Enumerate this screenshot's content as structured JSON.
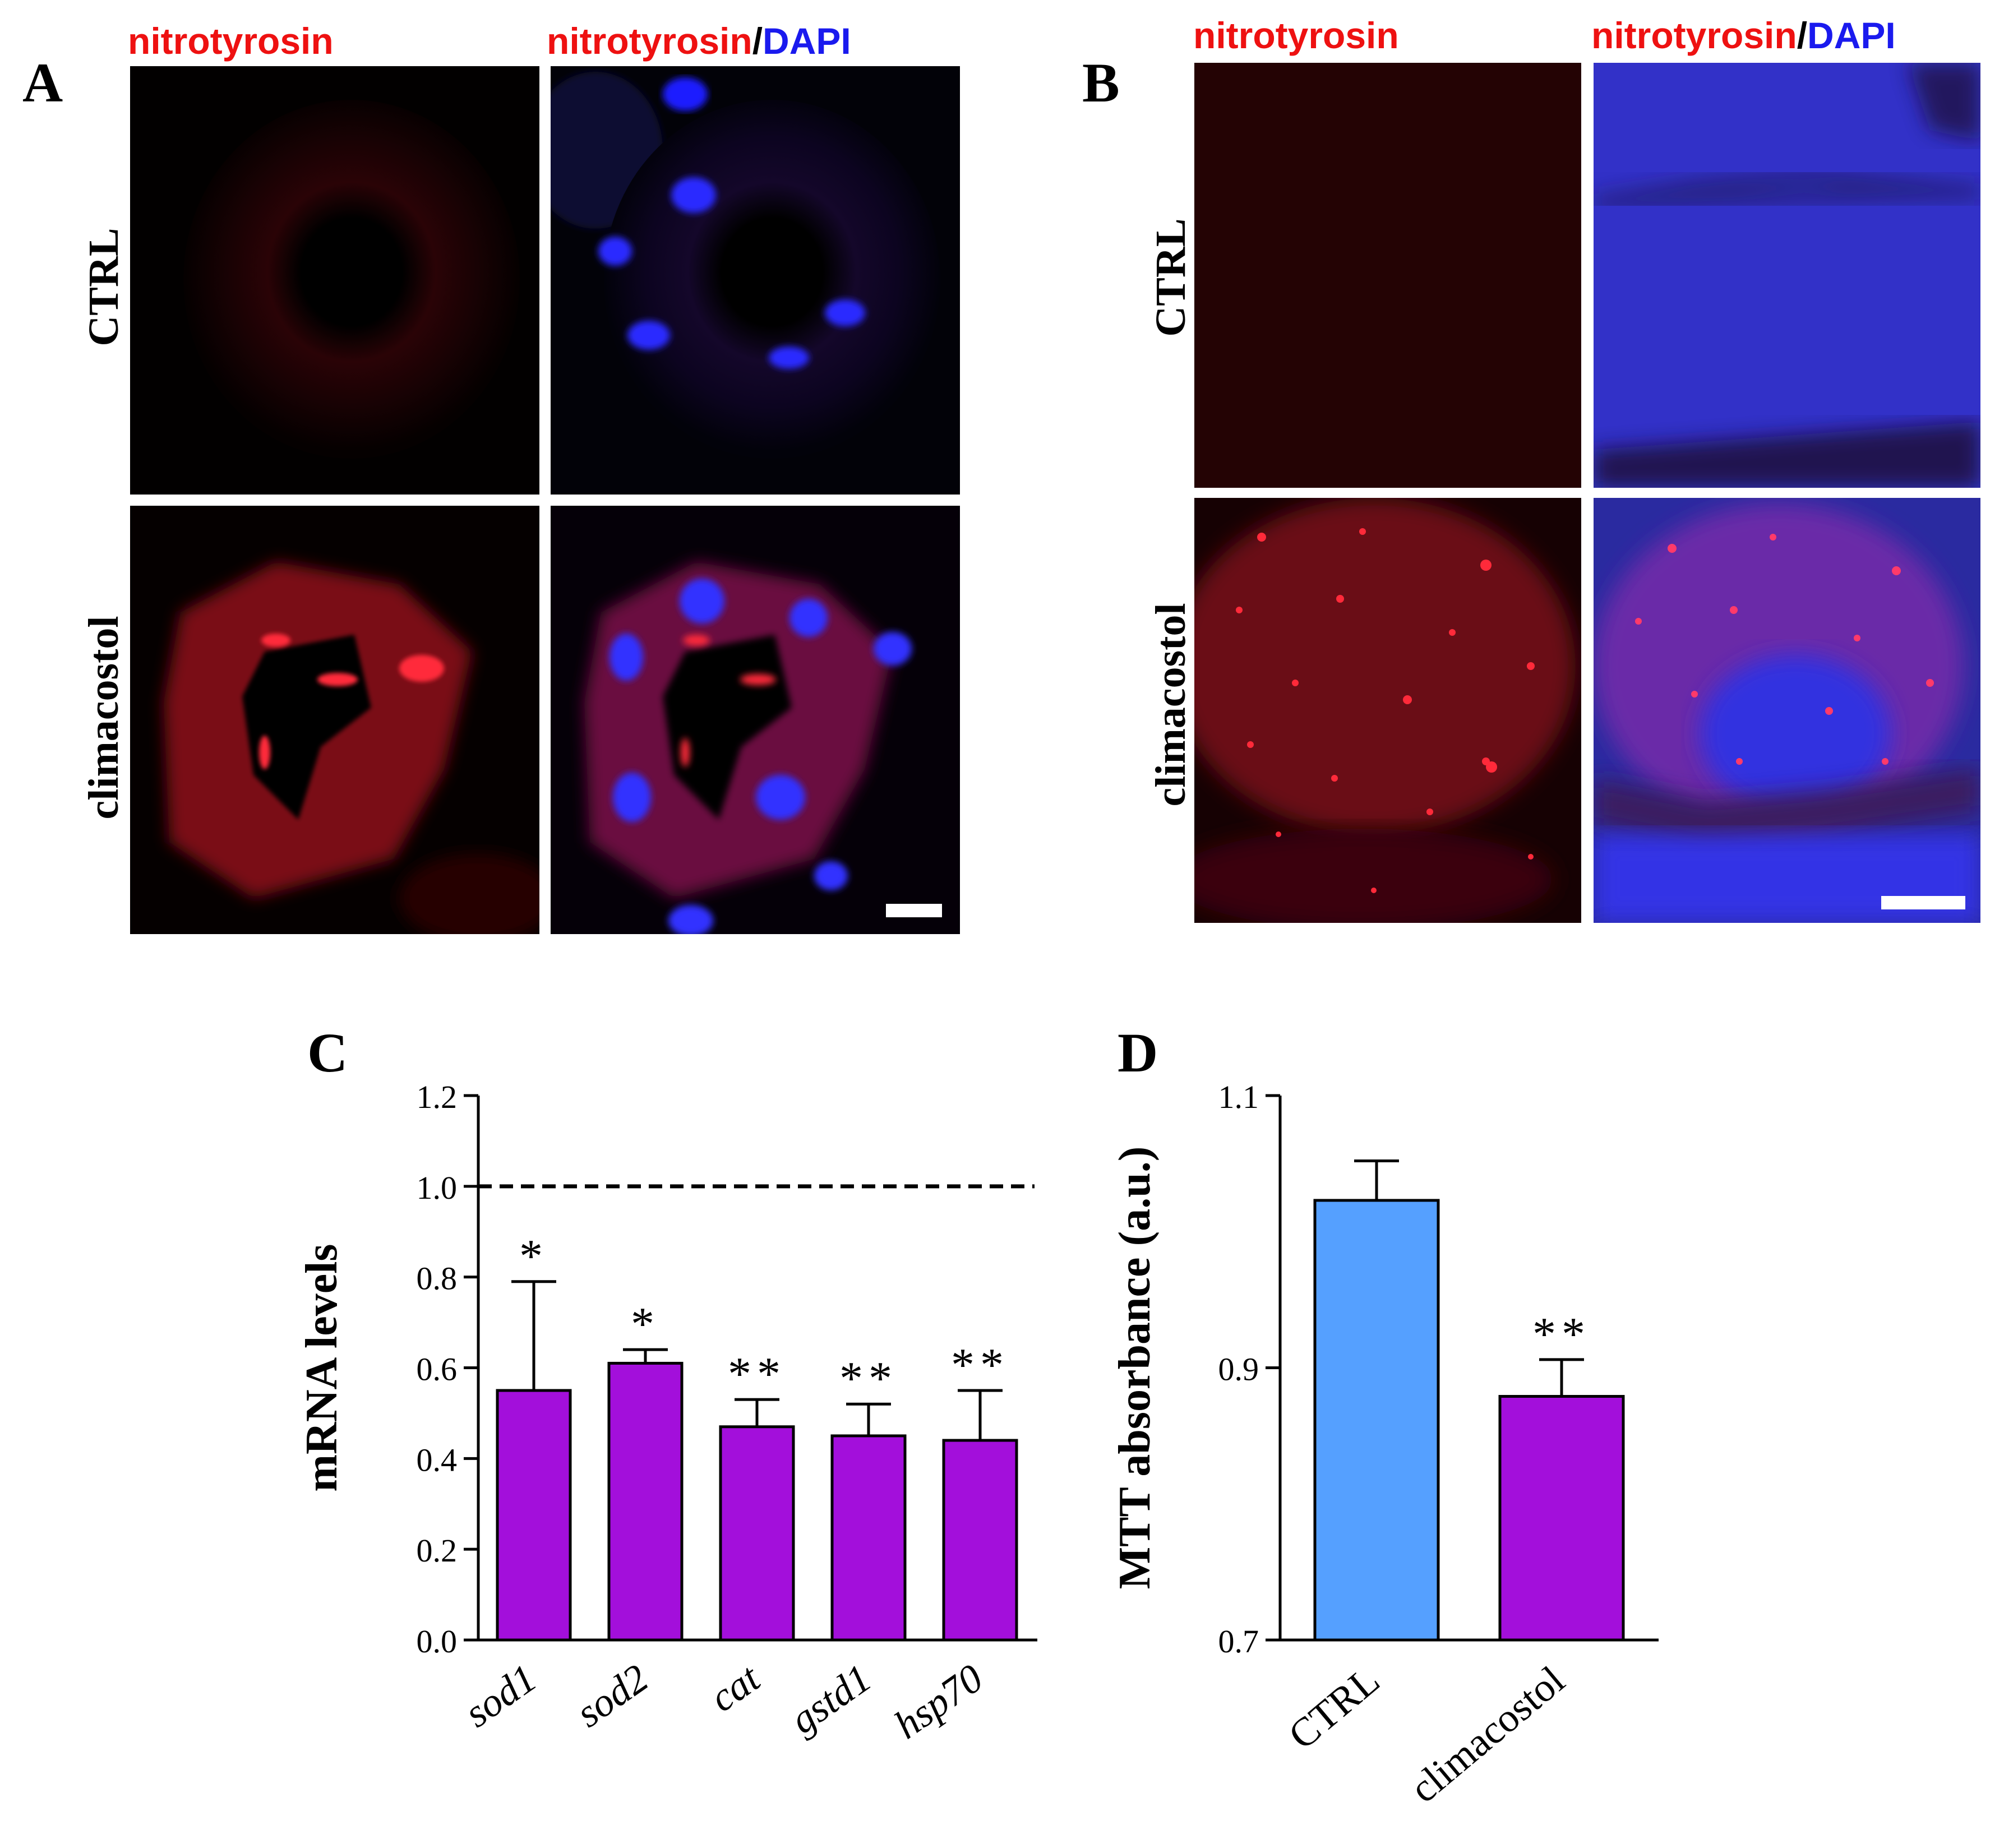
{
  "panels": {
    "A": {
      "letter": "A",
      "col_labels": {
        "left": "nitrotyrosin",
        "right_red": "nitrotyrosin",
        "sep": "/",
        "right_blue": "DAPI"
      },
      "row_labels": [
        "CTRL",
        "climacostol"
      ]
    },
    "B": {
      "letter": "B",
      "col_labels": {
        "left": "nitrotyrosin",
        "right_red": "nitrotyrosin",
        "sep": "/",
        "right_blue": "DAPI"
      },
      "row_labels": [
        "CTRL",
        "climacostol"
      ]
    }
  },
  "colors": {
    "nitrotyrosin": "#ee1111",
    "dapi": "#1a1aee",
    "bar_purple": "#a30fdb",
    "bar_blue": "#55a0ff"
  },
  "chart_data": [
    {
      "panel": "C",
      "type": "bar",
      "ylabel": "mRNA levels",
      "ylim": [
        0,
        1.2
      ],
      "yticks": [
        "0.0",
        "0.2",
        "0.4",
        "0.6",
        "0.8",
        "1.0",
        "1.2"
      ],
      "reference_line": 1.0,
      "categories": [
        "sod1",
        "sod2",
        "cat",
        "gstd1",
        "hsp70"
      ],
      "values": [
        0.55,
        0.61,
        0.47,
        0.45,
        0.44
      ],
      "errors": [
        0.24,
        0.03,
        0.06,
        0.07,
        0.11
      ],
      "significance": [
        "*",
        "*",
        "**",
        "**",
        "**"
      ],
      "bar_color": "#a30fdb"
    },
    {
      "panel": "D",
      "type": "bar",
      "ylabel": "MTT absorbance (a.u.)",
      "ylim": [
        0.7,
        1.1
      ],
      "yticks": [
        "0.7",
        "0.9",
        "1.1"
      ],
      "categories": [
        "CTRL",
        "climacostol"
      ],
      "values": [
        1.023,
        0.879
      ],
      "errors": [
        0.029,
        0.027
      ],
      "significance": [
        "",
        "**"
      ],
      "bar_colors": [
        "#55a0ff",
        "#a30fdb"
      ]
    }
  ]
}
